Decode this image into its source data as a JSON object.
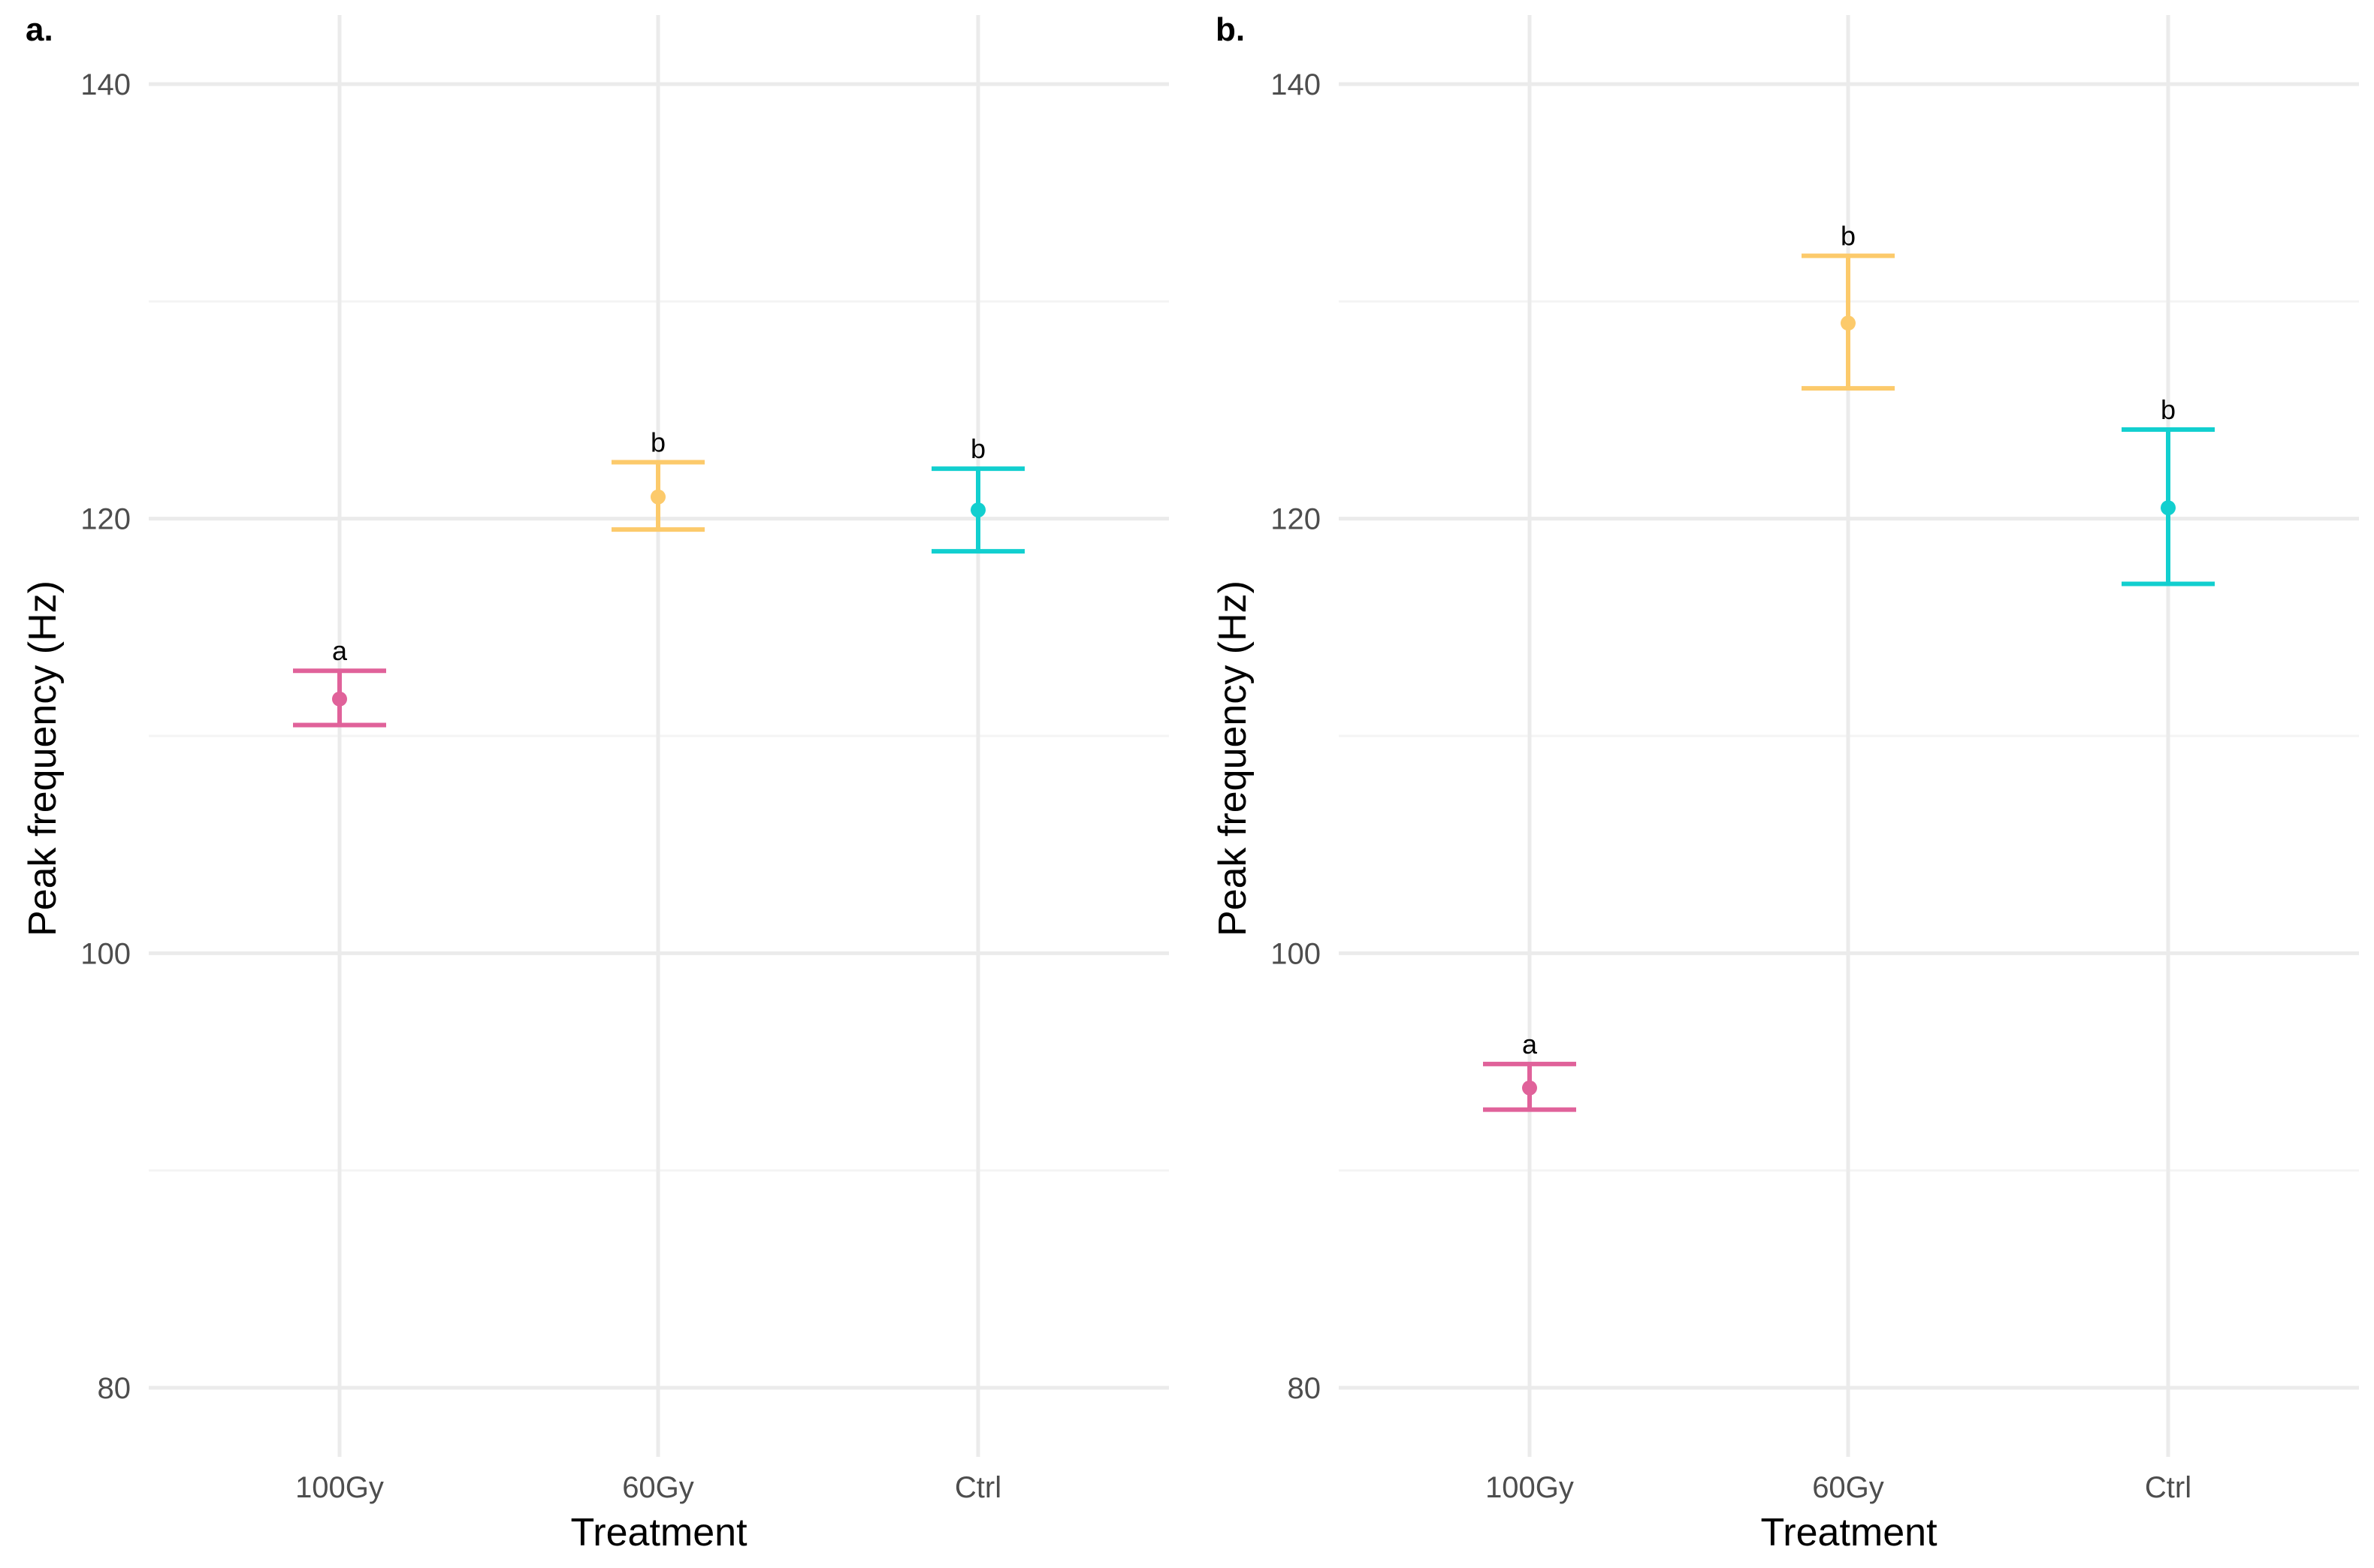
{
  "chart_data": [
    {
      "type": "errorbar",
      "panel_label": "a.",
      "xlabel": "Treatment",
      "ylabel": "Peak frequency (Hz)",
      "categories": [
        "100Gy",
        "60Gy",
        "Ctrl"
      ],
      "ylim": [
        77,
        143
      ],
      "yticks": [
        "80",
        "100",
        "120",
        "140"
      ],
      "points": [
        {
          "category": "100Gy",
          "mean": 111.7,
          "lower": 110.5,
          "upper": 113.0,
          "label": "a",
          "color": "#e0629a"
        },
        {
          "category": "60Gy",
          "mean": 121.0,
          "lower": 119.5,
          "upper": 122.6,
          "label": "b",
          "color": "#fcca6b"
        },
        {
          "category": "Ctrl",
          "mean": 120.4,
          "lower": 118.5,
          "upper": 122.3,
          "label": "b",
          "color": "#12cfcf"
        }
      ]
    },
    {
      "type": "errorbar",
      "panel_label": "b.",
      "xlabel": "Treatment",
      "ylabel": "Peak frequency (Hz)",
      "categories": [
        "100Gy",
        "60Gy",
        "Ctrl"
      ],
      "ylim": [
        77,
        143
      ],
      "yticks": [
        "80",
        "100",
        "120",
        "140"
      ],
      "points": [
        {
          "category": "100Gy",
          "mean": 93.8,
          "lower": 92.8,
          "upper": 94.9,
          "label": "a",
          "color": "#e0629a"
        },
        {
          "category": "60Gy",
          "mean": 129.0,
          "lower": 126.0,
          "upper": 132.1,
          "label": "b",
          "color": "#fcca6b"
        },
        {
          "category": "Ctrl",
          "mean": 120.5,
          "lower": 117.0,
          "upper": 124.1,
          "label": "b",
          "color": "#12cfcf"
        }
      ]
    }
  ]
}
